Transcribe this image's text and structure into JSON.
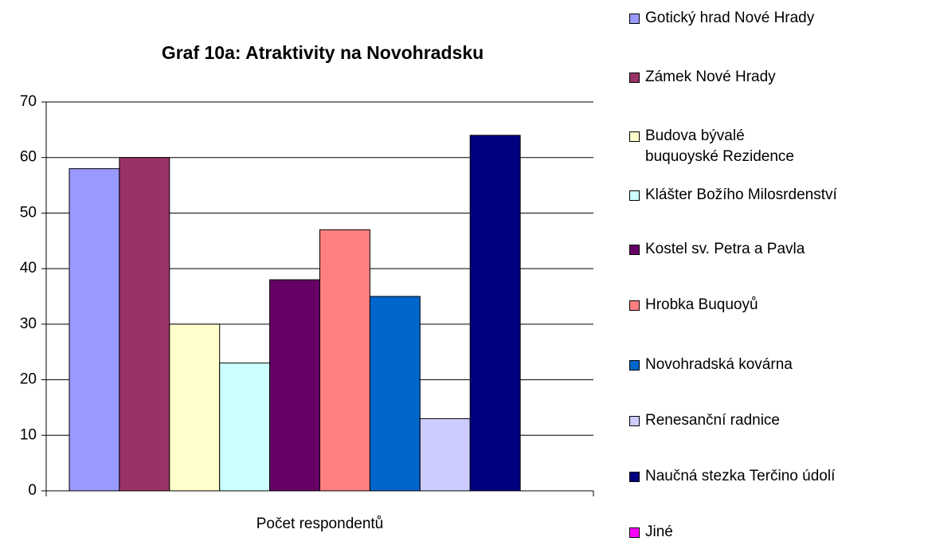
{
  "chart_data": {
    "type": "bar",
    "title": "Graf 10a: Atraktivity na Novohradsku",
    "categories": [
      "Počet respondentů"
    ],
    "series": [
      {
        "name": "Gotický hrad Nové Hrady",
        "color": "#9999ff",
        "values": [
          58
        ]
      },
      {
        "name": "Zámek Nové Hrady",
        "color": "#993366",
        "values": [
          60
        ]
      },
      {
        "name": "Budova bývalé buquoyské Rezidence",
        "color": "#ffffcc",
        "values": [
          30
        ]
      },
      {
        "name": "Klášter Božího Milosrdenství",
        "color": "#ccffff",
        "values": [
          23
        ]
      },
      {
        "name": "Kostel sv. Petra a Pavla",
        "color": "#660066",
        "values": [
          38
        ]
      },
      {
        "name": "Hrobka Buquoyů",
        "color": "#ff8080",
        "values": [
          47
        ]
      },
      {
        "name": "Novohradská kovárna",
        "color": "#0066cc",
        "values": [
          35
        ]
      },
      {
        "name": "Renesanční radnice",
        "color": "#ccccff",
        "values": [
          13
        ]
      },
      {
        "name": "Naučná stezka Terčino údolí",
        "color": "#000080",
        "values": [
          64
        ]
      },
      {
        "name": "Jiné",
        "color": "#ff00ff",
        "values": [
          0
        ]
      }
    ],
    "ylim": [
      0,
      70
    ],
    "yticks": [
      0,
      10,
      20,
      30,
      40,
      50,
      60,
      70
    ],
    "grid": true,
    "legend": "right"
  }
}
